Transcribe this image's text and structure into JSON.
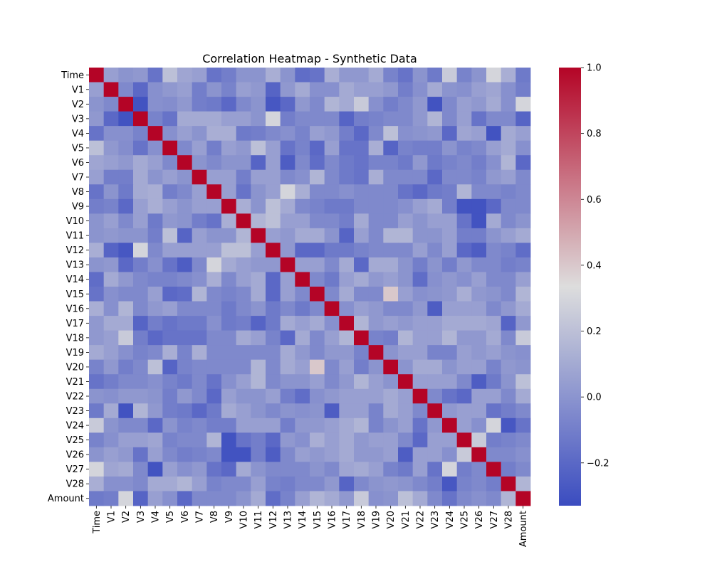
{
  "chart_data": {
    "type": "heatmap",
    "title": "Correlation Heatmap - Synthetic Data",
    "variables": [
      "Time",
      "V1",
      "V2",
      "V3",
      "V4",
      "V5",
      "V6",
      "V7",
      "V8",
      "V9",
      "V10",
      "V11",
      "V12",
      "V13",
      "V14",
      "V15",
      "V16",
      "V17",
      "V18",
      "V19",
      "V20",
      "V21",
      "V22",
      "V23",
      "V24",
      "V25",
      "V26",
      "V27",
      "V28",
      "Amount"
    ],
    "colormap": "coolwarm",
    "vmin": -0.33,
    "vmax": 1.0,
    "colorbar_ticks": [
      "1.0",
      "0.8",
      "0.6",
      "0.4",
      "0.2",
      "0.0",
      "−0.2"
    ],
    "colorbar_tick_values": [
      1.0,
      0.8,
      0.6,
      0.4,
      0.2,
      0.0,
      -0.2
    ],
    "colors": {
      "low": "#3b4cc0",
      "mid": "#dddddd",
      "high": "#b40426"
    },
    "matrix": [
      [
        1.0,
        0.05,
        0.0,
        0.02,
        -0.15,
        0.2,
        0.08,
        0.05,
        -0.15,
        -0.1,
        0.0,
        0.0,
        0.12,
        0.0,
        -0.18,
        -0.15,
        0.12,
        0.02,
        0.02,
        0.1,
        -0.08,
        -0.15,
        0.0,
        -0.12,
        0.25,
        -0.08,
        0.0,
        0.3,
        0.12,
        -0.12
      ],
      [
        0.05,
        1.0,
        -0.05,
        -0.2,
        -0.02,
        0.02,
        0.05,
        -0.1,
        0.0,
        -0.08,
        0.05,
        0.02,
        -0.22,
        0.02,
        0.1,
        -0.02,
        -0.02,
        0.1,
        0.05,
        0.05,
        0.02,
        -0.1,
        -0.02,
        0.1,
        0.0,
        -0.02,
        0.05,
        0.08,
        -0.02,
        -0.1
      ],
      [
        0.0,
        -0.05,
        1.0,
        -0.3,
        -0.02,
        -0.03,
        0.02,
        -0.1,
        -0.12,
        -0.2,
        -0.05,
        0.0,
        -0.28,
        -0.2,
        0.02,
        -0.05,
        0.15,
        0.1,
        0.25,
        -0.02,
        -0.1,
        -0.05,
        0.02,
        -0.3,
        -0.05,
        0.05,
        0.02,
        0.1,
        -0.02,
        0.3
      ],
      [
        0.02,
        -0.2,
        -0.3,
        1.0,
        -0.08,
        -0.15,
        0.1,
        0.1,
        0.1,
        0.05,
        0.05,
        0.0,
        0.3,
        -0.1,
        -0.05,
        -0.05,
        -0.05,
        -0.22,
        -0.1,
        -0.08,
        -0.05,
        -0.05,
        0.02,
        0.15,
        -0.05,
        0.05,
        -0.15,
        -0.05,
        -0.05,
        -0.22
      ],
      [
        -0.15,
        -0.02,
        -0.02,
        -0.08,
        1.0,
        -0.02,
        0.05,
        0.0,
        0.12,
        0.12,
        -0.12,
        -0.1,
        -0.05,
        -0.02,
        -0.08,
        0.05,
        0.02,
        -0.1,
        -0.2,
        -0.05,
        0.2,
        -0.02,
        0.0,
        0.02,
        -0.2,
        0.08,
        0.05,
        -0.3,
        0.1,
        0.05
      ],
      [
        0.2,
        0.02,
        -0.03,
        -0.15,
        -0.02,
        1.0,
        -0.05,
        0.05,
        -0.1,
        0.05,
        0.02,
        0.2,
        0.05,
        -0.15,
        -0.08,
        -0.2,
        0.05,
        -0.15,
        -0.15,
        0.12,
        -0.22,
        -0.08,
        -0.1,
        -0.1,
        0.0,
        -0.08,
        -0.05,
        0.05,
        0.1,
        -0.02
      ],
      [
        0.08,
        0.05,
        0.02,
        0.1,
        0.05,
        -0.05,
        1.0,
        0.0,
        -0.05,
        0.0,
        0.0,
        -0.22,
        0.05,
        -0.25,
        -0.05,
        -0.18,
        -0.05,
        -0.12,
        -0.15,
        -0.08,
        -0.08,
        -0.12,
        0.02,
        -0.12,
        -0.08,
        -0.05,
        -0.1,
        -0.02,
        0.15,
        -0.2
      ],
      [
        0.05,
        -0.1,
        -0.1,
        0.1,
        0.0,
        0.05,
        0.0,
        1.0,
        0.05,
        0.05,
        -0.1,
        0.05,
        0.05,
        -0.05,
        -0.02,
        0.15,
        -0.05,
        -0.12,
        -0.15,
        0.12,
        -0.05,
        -0.05,
        -0.05,
        -0.2,
        -0.05,
        -0.05,
        -0.08,
        0.02,
        0.05,
        -0.05
      ],
      [
        -0.15,
        0.0,
        -0.12,
        0.1,
        0.12,
        -0.1,
        -0.05,
        0.05,
        1.0,
        0.05,
        -0.15,
        0.0,
        0.05,
        0.3,
        0.12,
        -0.05,
        -0.05,
        -0.02,
        -0.05,
        -0.05,
        -0.05,
        -0.15,
        -0.2,
        -0.12,
        -0.1,
        0.15,
        -0.05,
        -0.05,
        -0.08,
        -0.05
      ],
      [
        -0.1,
        -0.08,
        -0.2,
        0.05,
        0.12,
        0.05,
        0.0,
        0.05,
        0.05,
        1.0,
        0.12,
        0.0,
        0.2,
        0.1,
        -0.05,
        -0.08,
        -0.12,
        -0.12,
        -0.05,
        -0.05,
        -0.05,
        -0.02,
        0.05,
        0.1,
        -0.1,
        -0.3,
        -0.3,
        -0.2,
        -0.05,
        -0.05
      ],
      [
        0.0,
        0.05,
        -0.05,
        0.05,
        -0.12,
        0.02,
        0.0,
        -0.1,
        -0.15,
        0.12,
        1.0,
        0.15,
        0.2,
        0.05,
        0.05,
        -0.05,
        -0.05,
        -0.1,
        0.1,
        -0.05,
        -0.05,
        0.05,
        0.0,
        0.05,
        0.05,
        -0.15,
        -0.3,
        0.1,
        -0.05,
        0.0
      ],
      [
        0.0,
        0.02,
        0.0,
        0.0,
        -0.1,
        0.2,
        -0.22,
        0.05,
        0.0,
        0.0,
        0.15,
        1.0,
        0.05,
        0.02,
        0.1,
        0.1,
        0.0,
        -0.22,
        0.05,
        -0.05,
        0.15,
        0.15,
        0.0,
        0.0,
        0.05,
        -0.1,
        -0.1,
        0.0,
        0.05,
        0.1
      ],
      [
        0.12,
        -0.22,
        -0.28,
        0.3,
        -0.05,
        0.05,
        0.05,
        0.05,
        0.05,
        0.2,
        0.2,
        0.05,
        1.0,
        0.02,
        -0.2,
        -0.2,
        -0.12,
        -0.12,
        -0.08,
        -0.05,
        -0.05,
        -0.05,
        0.05,
        -0.05,
        0.05,
        -0.2,
        -0.25,
        -0.05,
        -0.08,
        -0.18
      ],
      [
        0.0,
        0.02,
        -0.2,
        -0.1,
        -0.02,
        -0.15,
        -0.25,
        -0.05,
        0.3,
        0.1,
        0.05,
        0.02,
        0.02,
        1.0,
        0.05,
        0.05,
        -0.05,
        0.1,
        -0.2,
        0.1,
        0.1,
        0.0,
        -0.1,
        0.0,
        -0.1,
        0.02,
        -0.05,
        -0.05,
        -0.1,
        -0.08
      ],
      [
        -0.18,
        0.1,
        0.02,
        -0.05,
        -0.08,
        -0.08,
        -0.05,
        -0.02,
        0.12,
        -0.05,
        0.05,
        0.1,
        -0.2,
        0.05,
        1.0,
        -0.05,
        -0.12,
        0.05,
        0.1,
        0.02,
        0.05,
        0.0,
        -0.18,
        -0.02,
        0.02,
        -0.02,
        0.05,
        -0.05,
        -0.05,
        0.05
      ],
      [
        -0.15,
        -0.02,
        -0.05,
        -0.05,
        0.05,
        -0.2,
        -0.18,
        0.15,
        -0.05,
        -0.08,
        -0.05,
        0.1,
        -0.2,
        0.05,
        -0.05,
        1.0,
        -0.05,
        0.1,
        -0.05,
        -0.05,
        0.4,
        0.05,
        -0.02,
        0.0,
        0.02,
        0.12,
        0.02,
        0.0,
        -0.05,
        0.15
      ],
      [
        0.12,
        -0.02,
        0.15,
        -0.05,
        0.02,
        0.05,
        -0.05,
        -0.05,
        -0.05,
        -0.12,
        -0.05,
        0.0,
        -0.12,
        -0.05,
        -0.12,
        -0.05,
        1.0,
        -0.02,
        0.05,
        0.02,
        -0.05,
        -0.05,
        0.02,
        -0.25,
        0.05,
        0.05,
        0.05,
        -0.05,
        0.02,
        0.1
      ],
      [
        0.02,
        0.1,
        0.1,
        -0.22,
        -0.1,
        -0.15,
        -0.12,
        -0.12,
        -0.02,
        -0.12,
        -0.1,
        -0.22,
        -0.12,
        0.1,
        0.05,
        0.1,
        -0.02,
        1.0,
        0.15,
        0.02,
        0.05,
        0.02,
        0.05,
        0.05,
        0.1,
        0.1,
        0.1,
        0.08,
        -0.22,
        0.02
      ],
      [
        0.02,
        0.05,
        0.25,
        -0.1,
        -0.2,
        -0.15,
        -0.15,
        -0.15,
        -0.05,
        -0.05,
        0.1,
        0.05,
        -0.08,
        -0.2,
        0.1,
        -0.05,
        0.05,
        0.15,
        1.0,
        -0.08,
        -0.1,
        0.15,
        0.05,
        0.05,
        0.15,
        0.02,
        0.02,
        0.1,
        -0.05,
        0.25
      ],
      [
        0.1,
        0.05,
        -0.02,
        -0.08,
        -0.05,
        0.12,
        -0.08,
        0.12,
        -0.05,
        -0.05,
        -0.05,
        -0.05,
        -0.05,
        0.1,
        0.02,
        -0.05,
        0.02,
        0.02,
        -0.08,
        1.0,
        0.0,
        0.05,
        0.05,
        -0.08,
        -0.08,
        0.05,
        0.02,
        0.05,
        0.0,
        -0.02
      ],
      [
        -0.08,
        0.02,
        -0.1,
        -0.05,
        0.2,
        -0.22,
        -0.08,
        -0.05,
        -0.05,
        -0.05,
        -0.05,
        0.15,
        -0.05,
        0.1,
        0.05,
        0.4,
        -0.05,
        0.05,
        -0.1,
        0.0,
        1.0,
        0.0,
        0.1,
        0.1,
        0.0,
        0.05,
        0.05,
        -0.08,
        0.02,
        0.0
      ],
      [
        -0.15,
        -0.1,
        -0.05,
        -0.05,
        -0.02,
        -0.08,
        -0.12,
        -0.05,
        -0.15,
        -0.02,
        0.05,
        0.15,
        -0.05,
        0.0,
        0.0,
        0.05,
        -0.05,
        0.02,
        0.15,
        0.05,
        0.0,
        1.0,
        0.05,
        0.05,
        0.05,
        -0.05,
        -0.25,
        -0.12,
        0.0,
        0.2
      ],
      [
        0.0,
        -0.02,
        0.02,
        0.02,
        0.0,
        -0.1,
        0.02,
        -0.05,
        -0.2,
        0.05,
        0.0,
        0.0,
        0.05,
        -0.1,
        -0.18,
        -0.02,
        0.02,
        0.05,
        0.05,
        0.05,
        0.1,
        0.05,
        1.0,
        -0.05,
        -0.15,
        -0.2,
        0.05,
        0.05,
        -0.05,
        0.1
      ],
      [
        -0.12,
        0.1,
        -0.3,
        0.15,
        0.02,
        -0.1,
        -0.12,
        -0.2,
        -0.12,
        0.1,
        0.05,
        0.0,
        -0.05,
        0.0,
        -0.02,
        0.0,
        -0.25,
        0.05,
        0.05,
        -0.08,
        0.1,
        0.05,
        -0.05,
        1.0,
        0.02,
        0.05,
        0.05,
        -0.15,
        -0.1,
        -0.05
      ],
      [
        0.25,
        0.0,
        -0.05,
        -0.05,
        -0.2,
        0.0,
        -0.08,
        -0.05,
        -0.1,
        -0.1,
        0.05,
        0.05,
        0.05,
        -0.1,
        0.02,
        0.02,
        0.05,
        0.1,
        0.15,
        -0.08,
        0.0,
        0.05,
        -0.15,
        0.02,
        1.0,
        0.05,
        -0.02,
        0.3,
        -0.28,
        -0.15
      ],
      [
        -0.08,
        -0.02,
        0.05,
        0.05,
        0.08,
        -0.08,
        -0.05,
        -0.05,
        0.15,
        -0.3,
        -0.15,
        -0.1,
        -0.2,
        0.02,
        -0.02,
        0.12,
        0.05,
        0.1,
        0.02,
        0.05,
        0.05,
        -0.05,
        -0.2,
        0.05,
        0.05,
        1.0,
        0.25,
        -0.1,
        -0.08,
        -0.05
      ],
      [
        0.0,
        0.05,
        0.02,
        -0.15,
        0.05,
        -0.05,
        -0.1,
        -0.08,
        -0.05,
        -0.3,
        -0.3,
        -0.1,
        -0.25,
        -0.05,
        0.05,
        0.02,
        0.05,
        0.1,
        0.02,
        0.02,
        0.05,
        -0.25,
        0.05,
        0.05,
        -0.02,
        0.25,
        1.0,
        -0.05,
        -0.05,
        -0.02
      ],
      [
        0.3,
        0.08,
        0.1,
        -0.05,
        -0.3,
        0.05,
        -0.02,
        0.02,
        -0.15,
        -0.2,
        0.1,
        0.0,
        -0.05,
        -0.05,
        -0.05,
        0.0,
        -0.05,
        0.08,
        0.1,
        0.05,
        -0.08,
        -0.12,
        0.05,
        -0.15,
        0.3,
        -0.1,
        -0.05,
        1.0,
        -0.1,
        -0.05
      ],
      [
        0.12,
        -0.02,
        -0.02,
        -0.05,
        0.1,
        0.1,
        0.15,
        0.05,
        -0.08,
        -0.05,
        -0.05,
        0.05,
        -0.08,
        -0.1,
        -0.05,
        -0.05,
        0.02,
        -0.22,
        -0.05,
        0.0,
        0.02,
        0.0,
        -0.05,
        -0.1,
        -0.28,
        -0.08,
        -0.05,
        -0.1,
        1.0,
        0.15
      ],
      [
        -0.12,
        -0.1,
        0.3,
        -0.22,
        0.05,
        -0.02,
        -0.2,
        -0.05,
        -0.05,
        -0.05,
        0.0,
        0.1,
        -0.18,
        -0.08,
        0.05,
        0.15,
        0.1,
        0.02,
        0.25,
        -0.02,
        0.0,
        0.2,
        0.1,
        -0.05,
        -0.15,
        -0.05,
        -0.02,
        -0.05,
        0.15,
        1.0
      ]
    ]
  }
}
